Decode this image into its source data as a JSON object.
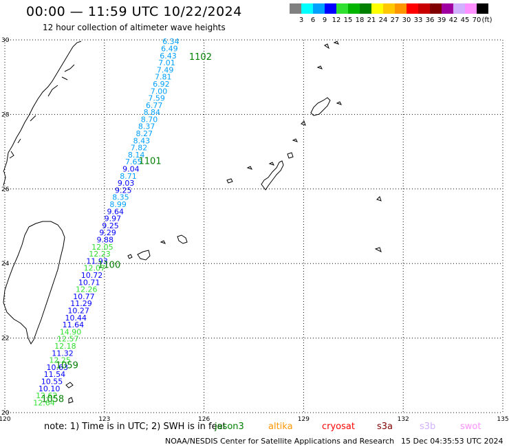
{
  "header": {
    "title": "00:00 — 11:59 UTC 10/22/2024",
    "subtitle": "12 hour collection of altimeter wave heights"
  },
  "legend": {
    "unit": "(ft)",
    "bins": [
      {
        "label": "3",
        "color": "#808080"
      },
      {
        "label": "6",
        "color": "#00ffff"
      },
      {
        "label": "9",
        "color": "#00a0ff"
      },
      {
        "label": "12",
        "color": "#0000ff"
      },
      {
        "label": "15",
        "color": "#30e030"
      },
      {
        "label": "18",
        "color": "#00b400"
      },
      {
        "label": "21",
        "color": "#008000"
      },
      {
        "label": "24",
        "color": "#ffff00"
      },
      {
        "label": "27",
        "color": "#ffc800"
      },
      {
        "label": "30",
        "color": "#ff9600"
      },
      {
        "label": "33",
        "color": "#ff0000"
      },
      {
        "label": "36",
        "color": "#c80000"
      },
      {
        "label": "39",
        "color": "#800000"
      },
      {
        "label": "42",
        "color": "#a000a0"
      },
      {
        "label": "45",
        "color": "#d0b0ff"
      },
      {
        "label": "70",
        "color": "#ff90ff"
      },
      {
        "label": "",
        "color": "#000000"
      }
    ]
  },
  "chart_data": {
    "type": "scatter",
    "title": "12 hour collection of altimeter wave heights",
    "lon_range": [
      120,
      135
    ],
    "lat_range": [
      20,
      30
    ],
    "lon_ticks": [
      "120",
      "123",
      "126",
      "129",
      "132",
      "135"
    ],
    "lat_ticks": [
      "30",
      "28",
      "26",
      "24",
      "22",
      "20"
    ],
    "units": "ft",
    "track": [
      {
        "lon": 125.0,
        "lat": 29.96,
        "v": "6.34"
      },
      {
        "lon": 124.96,
        "lat": 29.77,
        "v": "6.49"
      },
      {
        "lon": 124.92,
        "lat": 29.58,
        "v": "6.43"
      },
      {
        "lon": 124.88,
        "lat": 29.39,
        "v": "7.01"
      },
      {
        "lon": 124.83,
        "lat": 29.2,
        "v": "7.49"
      },
      {
        "lon": 124.77,
        "lat": 29.01,
        "v": "7.81"
      },
      {
        "lon": 124.71,
        "lat": 28.82,
        "v": "6.92"
      },
      {
        "lon": 124.64,
        "lat": 28.63,
        "v": "7.00"
      },
      {
        "lon": 124.57,
        "lat": 28.44,
        "v": "7.59"
      },
      {
        "lon": 124.5,
        "lat": 28.25,
        "v": "6.77"
      },
      {
        "lon": 124.43,
        "lat": 28.06,
        "v": "8.84"
      },
      {
        "lon": 124.35,
        "lat": 27.87,
        "v": "8.70"
      },
      {
        "lon": 124.27,
        "lat": 27.68,
        "v": "8.37"
      },
      {
        "lon": 124.2,
        "lat": 27.49,
        "v": "8.27"
      },
      {
        "lon": 124.12,
        "lat": 27.3,
        "v": "8.43"
      },
      {
        "lon": 124.04,
        "lat": 27.11,
        "v": "7.82"
      },
      {
        "lon": 123.96,
        "lat": 26.92,
        "v": "8.14"
      },
      {
        "lon": 123.88,
        "lat": 26.73,
        "v": "7.65"
      },
      {
        "lon": 123.8,
        "lat": 26.54,
        "v": "9.04"
      },
      {
        "lon": 123.72,
        "lat": 26.35,
        "v": "8.71"
      },
      {
        "lon": 123.65,
        "lat": 26.16,
        "v": "9.03"
      },
      {
        "lon": 123.57,
        "lat": 25.97,
        "v": "9.25"
      },
      {
        "lon": 123.49,
        "lat": 25.78,
        "v": "8.35"
      },
      {
        "lon": 123.41,
        "lat": 25.59,
        "v": "8.99"
      },
      {
        "lon": 123.33,
        "lat": 25.4,
        "v": "9.64"
      },
      {
        "lon": 123.25,
        "lat": 25.21,
        "v": "9.97"
      },
      {
        "lon": 123.18,
        "lat": 25.02,
        "v": "9.25"
      },
      {
        "lon": 123.1,
        "lat": 24.83,
        "v": "9.29"
      },
      {
        "lon": 123.02,
        "lat": 24.64,
        "v": "9.88"
      },
      {
        "lon": 122.94,
        "lat": 24.45,
        "v": "12.05"
      },
      {
        "lon": 122.86,
        "lat": 24.26,
        "v": "12.23"
      },
      {
        "lon": 122.78,
        "lat": 24.07,
        "v": "11.93"
      },
      {
        "lon": 122.7,
        "lat": 23.88,
        "v": "12.07"
      },
      {
        "lon": 122.62,
        "lat": 23.69,
        "v": "10.72"
      },
      {
        "lon": 122.54,
        "lat": 23.5,
        "v": "10.71"
      },
      {
        "lon": 122.46,
        "lat": 23.31,
        "v": "12.26"
      },
      {
        "lon": 122.38,
        "lat": 23.12,
        "v": "10.77"
      },
      {
        "lon": 122.3,
        "lat": 22.93,
        "v": "11.29"
      },
      {
        "lon": 122.22,
        "lat": 22.74,
        "v": "10.27"
      },
      {
        "lon": 122.14,
        "lat": 22.55,
        "v": "10.44"
      },
      {
        "lon": 122.06,
        "lat": 22.36,
        "v": "11.64"
      },
      {
        "lon": 121.98,
        "lat": 22.17,
        "v": "14.90"
      },
      {
        "lon": 121.9,
        "lat": 21.98,
        "v": "12.57"
      },
      {
        "lon": 121.82,
        "lat": 21.79,
        "v": "12.18"
      },
      {
        "lon": 121.74,
        "lat": 21.6,
        "v": "11.32"
      },
      {
        "lon": 121.66,
        "lat": 21.41,
        "v": "12.25"
      },
      {
        "lon": 121.58,
        "lat": 21.22,
        "v": "10.63"
      },
      {
        "lon": 121.5,
        "lat": 21.03,
        "v": "11.54"
      },
      {
        "lon": 121.42,
        "lat": 20.84,
        "v": "10.55"
      },
      {
        "lon": 121.34,
        "lat": 20.65,
        "v": "10.10"
      },
      {
        "lon": 121.26,
        "lat": 20.46,
        "v": "12.62"
      },
      {
        "lon": 121.18,
        "lat": 20.27,
        "v": "12.64"
      }
    ],
    "time_labels": [
      {
        "lon": 125.55,
        "lat": 29.56,
        "text": "1102"
      },
      {
        "lon": 124.03,
        "lat": 26.76,
        "text": "1101"
      },
      {
        "lon": 122.8,
        "lat": 23.98,
        "text": "1100"
      },
      {
        "lon": 121.53,
        "lat": 21.28,
        "text": "1059"
      },
      {
        "lon": 121.1,
        "lat": 20.38,
        "text": "1058"
      }
    ]
  },
  "footer": {
    "note": "note: 1) Time is in UTC; 2) SWH is in feet",
    "missions": [
      {
        "name": "jason3",
        "color": "#008000"
      },
      {
        "name": "altika",
        "color": "#ff9600"
      },
      {
        "name": "cryosat",
        "color": "#ff0000"
      },
      {
        "name": "s3a",
        "color": "#800000"
      },
      {
        "name": "s3b",
        "color": "#d0b0ff"
      },
      {
        "name": "swot",
        "color": "#ff90ff"
      }
    ],
    "credit": "NOAA/NESDIS Center for Satellite Applications and Research",
    "timestamp": "15 Dec 04:35:53 UTC 2024"
  }
}
